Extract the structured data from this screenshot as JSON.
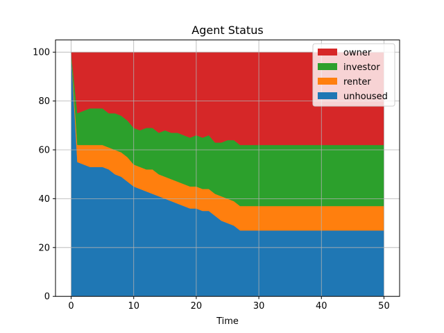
{
  "chart_data": {
    "type": "area",
    "title": "Agent Status",
    "xlabel": "Time",
    "ylabel": "",
    "xlim": [
      -2.5,
      52.5
    ],
    "ylim": [
      0,
      105
    ],
    "xticks": [
      0,
      10,
      20,
      30,
      40,
      50
    ],
    "yticks": [
      0,
      20,
      40,
      60,
      80,
      100
    ],
    "grid": true,
    "legend_position": "top-right",
    "x": [
      0,
      1,
      2,
      3,
      4,
      5,
      6,
      7,
      8,
      9,
      10,
      11,
      12,
      13,
      14,
      15,
      16,
      17,
      18,
      19,
      20,
      21,
      22,
      23,
      24,
      25,
      26,
      27,
      28,
      29,
      30,
      31,
      32,
      33,
      34,
      35,
      36,
      37,
      38,
      39,
      40,
      41,
      42,
      43,
      44,
      45,
      46,
      47,
      48,
      49,
      50
    ],
    "series": [
      {
        "name": "unhoused",
        "color": "#1f77b4",
        "values": [
          100,
          55,
          54,
          53,
          53,
          53,
          52,
          50,
          49,
          47,
          45,
          44,
          43,
          42,
          41,
          40,
          39,
          38,
          37,
          36,
          36,
          35,
          35,
          33,
          31,
          30,
          29,
          27,
          27,
          27,
          27,
          27,
          27,
          27,
          27,
          27,
          27,
          27,
          27,
          27,
          27,
          27,
          27,
          27,
          27,
          27,
          27,
          27,
          27,
          27,
          27
        ]
      },
      {
        "name": "renter",
        "color": "#ff7f0e",
        "values": [
          0,
          7,
          8,
          9,
          9,
          9,
          9,
          10,
          10,
          10,
          9,
          9,
          9,
          10,
          9,
          9,
          9,
          9,
          9,
          9,
          9,
          9,
          9,
          9,
          10,
          10,
          10,
          10,
          10,
          10,
          10,
          10,
          10,
          10,
          10,
          10,
          10,
          10,
          10,
          10,
          10,
          10,
          10,
          10,
          10,
          10,
          10,
          10,
          10,
          10,
          10
        ]
      },
      {
        "name": "investor",
        "color": "#2ca02c",
        "values": [
          0,
          13,
          14,
          15,
          15,
          15,
          14,
          15,
          15,
          15,
          15,
          15,
          17,
          17,
          17,
          19,
          19,
          20,
          20,
          20,
          21,
          21,
          22,
          21,
          22,
          24,
          25,
          25,
          25,
          25,
          25,
          25,
          25,
          25,
          25,
          25,
          25,
          25,
          25,
          25,
          25,
          25,
          25,
          25,
          25,
          25,
          25,
          25,
          25,
          25,
          25
        ]
      },
      {
        "name": "owner",
        "color": "#d62728",
        "values": [
          0,
          25,
          24,
          23,
          23,
          23,
          25,
          25,
          26,
          28,
          31,
          32,
          31,
          31,
          33,
          32,
          33,
          33,
          34,
          35,
          34,
          35,
          34,
          37,
          37,
          36,
          36,
          38,
          38,
          38,
          38,
          38,
          38,
          38,
          38,
          38,
          38,
          38,
          38,
          38,
          38,
          38,
          38,
          38,
          38,
          38,
          38,
          38,
          38,
          38,
          38
        ]
      }
    ]
  }
}
